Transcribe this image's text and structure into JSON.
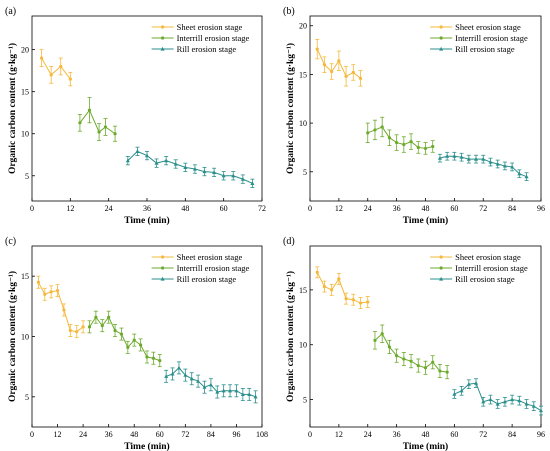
{
  "colors": {
    "sheet": "#F5B83A",
    "interrill": "#6DAA2C",
    "rill": "#2A8F8C"
  },
  "chart_data": [
    {
      "type": "line",
      "panel_label": "(a)",
      "xlabel": "Time (min)",
      "ylabel": "Organic carbon content (g·kg⁻¹)",
      "xlim": [
        0,
        72
      ],
      "ylim": [
        2,
        24
      ],
      "xticks": [
        0,
        12,
        24,
        36,
        48,
        60,
        72
      ],
      "yticks": [
        5,
        10,
        15,
        20
      ],
      "legend": "top-right",
      "series": [
        {
          "name": "Sheet erosion stage",
          "color_key": "sheet",
          "x": [
            3,
            6,
            9,
            12
          ],
          "y": [
            19.0,
            17.0,
            18.0,
            16.5
          ],
          "err": [
            1.0,
            1.0,
            1.0,
            0.8
          ]
        },
        {
          "name": "Interrill erosion stage",
          "color_key": "interrill",
          "x": [
            15,
            18,
            21,
            23,
            26
          ],
          "y": [
            11.3,
            12.8,
            10.2,
            10.8,
            10.0
          ],
          "err": [
            1.0,
            1.5,
            1.0,
            1.0,
            0.9
          ]
        },
        {
          "name": "Rill erosion stage",
          "color_key": "rill",
          "x": [
            30,
            33,
            36,
            39,
            42,
            45,
            48,
            51,
            54,
            57,
            60,
            63,
            66,
            69
          ],
          "y": [
            6.8,
            7.9,
            7.4,
            6.5,
            6.8,
            6.4,
            6.0,
            5.8,
            5.5,
            5.4,
            5.0,
            5.0,
            4.6,
            4.1
          ],
          "err": [
            0.5,
            0.5,
            0.5,
            0.5,
            0.5,
            0.5,
            0.5,
            0.5,
            0.5,
            0.5,
            0.5,
            0.5,
            0.5,
            0.5
          ]
        }
      ]
    },
    {
      "type": "line",
      "panel_label": "(b)",
      "xlabel": "Time (min)",
      "ylabel": "Organic carbon content (g·kg⁻¹)",
      "xlim": [
        0,
        96
      ],
      "ylim": [
        2,
        21
      ],
      "xticks": [
        0,
        12,
        24,
        36,
        48,
        60,
        72,
        84,
        96
      ],
      "yticks": [
        5,
        10,
        15,
        20
      ],
      "legend": "top-right",
      "series": [
        {
          "name": "Sheet erosion stage",
          "color_key": "sheet",
          "x": [
            3,
            6,
            9,
            12,
            15,
            18,
            21
          ],
          "y": [
            17.6,
            16.0,
            15.3,
            16.4,
            14.8,
            15.2,
            14.6
          ],
          "err": [
            1.0,
            0.8,
            0.8,
            1.0,
            1.0,
            0.8,
            0.8
          ]
        },
        {
          "name": "Interrill erosion stage",
          "color_key": "interrill",
          "x": [
            24,
            27,
            30,
            33,
            36,
            39,
            42,
            45,
            48,
            51
          ],
          "y": [
            9.0,
            9.3,
            9.6,
            8.5,
            8.0,
            7.8,
            8.1,
            7.5,
            7.4,
            7.6
          ],
          "err": [
            1.0,
            1.0,
            1.0,
            0.8,
            0.8,
            0.8,
            0.8,
            0.6,
            0.6,
            0.6
          ]
        },
        {
          "name": "Rill erosion stage",
          "color_key": "rill",
          "x": [
            54,
            57,
            60,
            63,
            66,
            69,
            72,
            75,
            78,
            81,
            84,
            87,
            90
          ],
          "y": [
            6.4,
            6.6,
            6.6,
            6.5,
            6.3,
            6.3,
            6.3,
            6.0,
            5.8,
            5.6,
            5.5,
            4.8,
            4.5
          ],
          "err": [
            0.4,
            0.4,
            0.4,
            0.4,
            0.4,
            0.4,
            0.4,
            0.4,
            0.4,
            0.4,
            0.4,
            0.4,
            0.4
          ]
        }
      ]
    },
    {
      "type": "line",
      "panel_label": "(c)",
      "xlabel": "Time (min)",
      "ylabel": "Organic carbon content (g·kg⁻¹)",
      "xlim": [
        0,
        108
      ],
      "ylim": [
        2.5,
        17.5
      ],
      "xticks": [
        0,
        12,
        24,
        36,
        48,
        60,
        72,
        84,
        96,
        108
      ],
      "yticks": [
        5,
        10,
        15
      ],
      "legend": "top-right",
      "series": [
        {
          "name": "Sheet erosion stage",
          "color_key": "sheet",
          "x": [
            3,
            6,
            9,
            12,
            15,
            18,
            21,
            24
          ],
          "y": [
            14.5,
            13.5,
            13.7,
            13.8,
            12.2,
            10.5,
            10.4,
            10.8
          ],
          "err": [
            0.5,
            0.5,
            0.5,
            0.5,
            0.5,
            0.5,
            0.5,
            0.5
          ]
        },
        {
          "name": "Interrill erosion stage",
          "color_key": "interrill",
          "x": [
            27,
            30,
            33,
            36,
            39,
            42,
            45,
            48,
            51,
            54,
            57,
            60
          ],
          "y": [
            10.8,
            11.6,
            10.9,
            11.6,
            10.5,
            10.2,
            9.1,
            9.7,
            9.3,
            8.3,
            8.2,
            8.0
          ],
          "err": [
            0.5,
            0.5,
            0.5,
            0.5,
            0.5,
            0.5,
            0.5,
            0.5,
            0.5,
            0.5,
            0.5,
            0.5
          ]
        },
        {
          "name": "Rill erosion stage",
          "color_key": "rill",
          "x": [
            63,
            66,
            69,
            72,
            75,
            78,
            81,
            84,
            87,
            90,
            93,
            96,
            99,
            102,
            105
          ],
          "y": [
            6.7,
            6.9,
            7.4,
            6.8,
            6.5,
            6.3,
            5.8,
            6.0,
            5.4,
            5.5,
            5.5,
            5.5,
            5.2,
            5.2,
            5.0
          ],
          "err": [
            0.5,
            0.5,
            0.5,
            0.5,
            0.5,
            0.5,
            0.5,
            0.5,
            0.5,
            0.5,
            0.5,
            0.5,
            0.5,
            0.5,
            0.5
          ]
        }
      ]
    },
    {
      "type": "line",
      "panel_label": "(d)",
      "xlabel": "Time (min)",
      "ylabel": "Organic carbon content (g·kg⁻¹)",
      "xlim": [
        0,
        96
      ],
      "ylim": [
        2.5,
        19
      ],
      "xticks": [
        0,
        12,
        24,
        36,
        48,
        60,
        72,
        84,
        96
      ],
      "yticks": [
        5,
        10,
        15
      ],
      "legend": "top-right",
      "series": [
        {
          "name": "Sheet erosion stage",
          "color_key": "sheet",
          "x": [
            3,
            6,
            9,
            12,
            15,
            18,
            21,
            24
          ],
          "y": [
            16.6,
            15.3,
            15.0,
            16.0,
            14.2,
            14.1,
            13.8,
            13.9
          ],
          "err": [
            0.5,
            0.5,
            0.5,
            0.5,
            0.5,
            0.5,
            0.5,
            0.5
          ]
        },
        {
          "name": "Interrill erosion stage",
          "color_key": "interrill",
          "x": [
            27,
            30,
            33,
            36,
            39,
            42,
            45,
            48,
            51,
            54,
            57
          ],
          "y": [
            10.4,
            11.0,
            9.8,
            9.0,
            8.7,
            8.5,
            8.1,
            7.9,
            8.4,
            7.6,
            7.5
          ],
          "err": [
            0.8,
            0.8,
            0.6,
            0.6,
            0.6,
            0.6,
            0.6,
            0.6,
            0.6,
            0.6,
            0.6
          ]
        },
        {
          "name": "Rill erosion stage",
          "color_key": "rill",
          "x": [
            60,
            63,
            66,
            69,
            72,
            75,
            78,
            81,
            84,
            87,
            90,
            93,
            96
          ],
          "y": [
            5.5,
            5.8,
            6.4,
            6.5,
            4.8,
            5.0,
            4.6,
            4.8,
            5.0,
            4.9,
            4.6,
            4.4,
            4.0
          ],
          "err": [
            0.4,
            0.4,
            0.4,
            0.4,
            0.4,
            0.4,
            0.4,
            0.4,
            0.4,
            0.4,
            0.4,
            0.4,
            0.4
          ]
        }
      ]
    }
  ]
}
